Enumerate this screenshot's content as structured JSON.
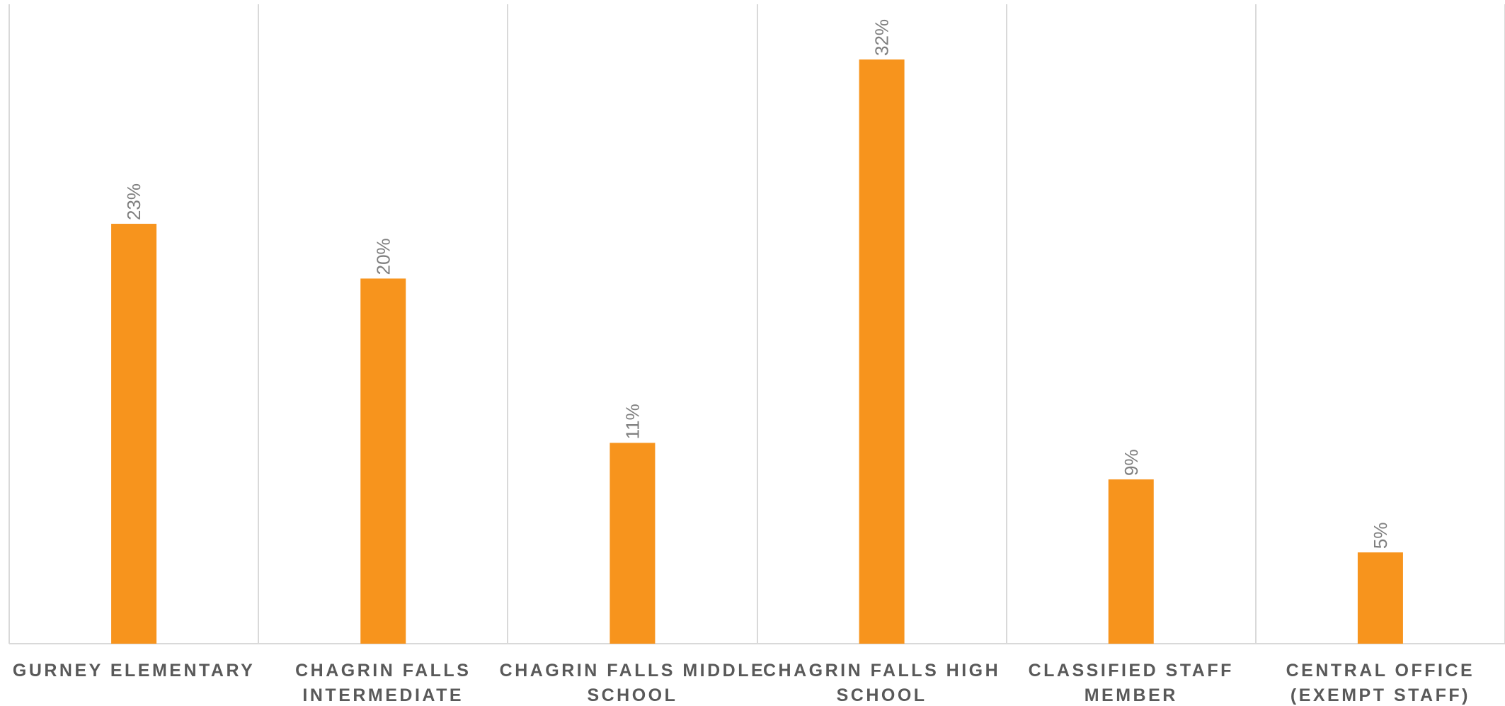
{
  "chart_data": {
    "type": "bar",
    "title": "",
    "xlabel": "",
    "ylabel": "",
    "categories": [
      [
        "GURNEY ELEMENTARY"
      ],
      [
        "CHAGRIN FALLS",
        "INTERMEDIATE"
      ],
      [
        "CHAGRIN FALLS MIDDLE",
        "SCHOOL"
      ],
      [
        "CHAGRIN FALLS HIGH",
        "SCHOOL"
      ],
      [
        "CLASSIFIED STAFF",
        "MEMBER"
      ],
      [
        "CENTRAL OFFICE",
        "(EXEMPT STAFF)"
      ]
    ],
    "values": [
      23,
      20,
      11,
      32,
      9,
      5
    ],
    "data_labels": [
      "23%",
      "20%",
      "11%",
      "32%",
      "9%",
      "5%"
    ],
    "value_unit": "%",
    "ylim": [
      0,
      35
    ],
    "grid": "vertical category separators",
    "legend": "none",
    "colors": {
      "bar": "#f7941d",
      "grid": "#d9d9d9",
      "data_label": "#7f7f7f",
      "category_label": "#595959"
    }
  }
}
